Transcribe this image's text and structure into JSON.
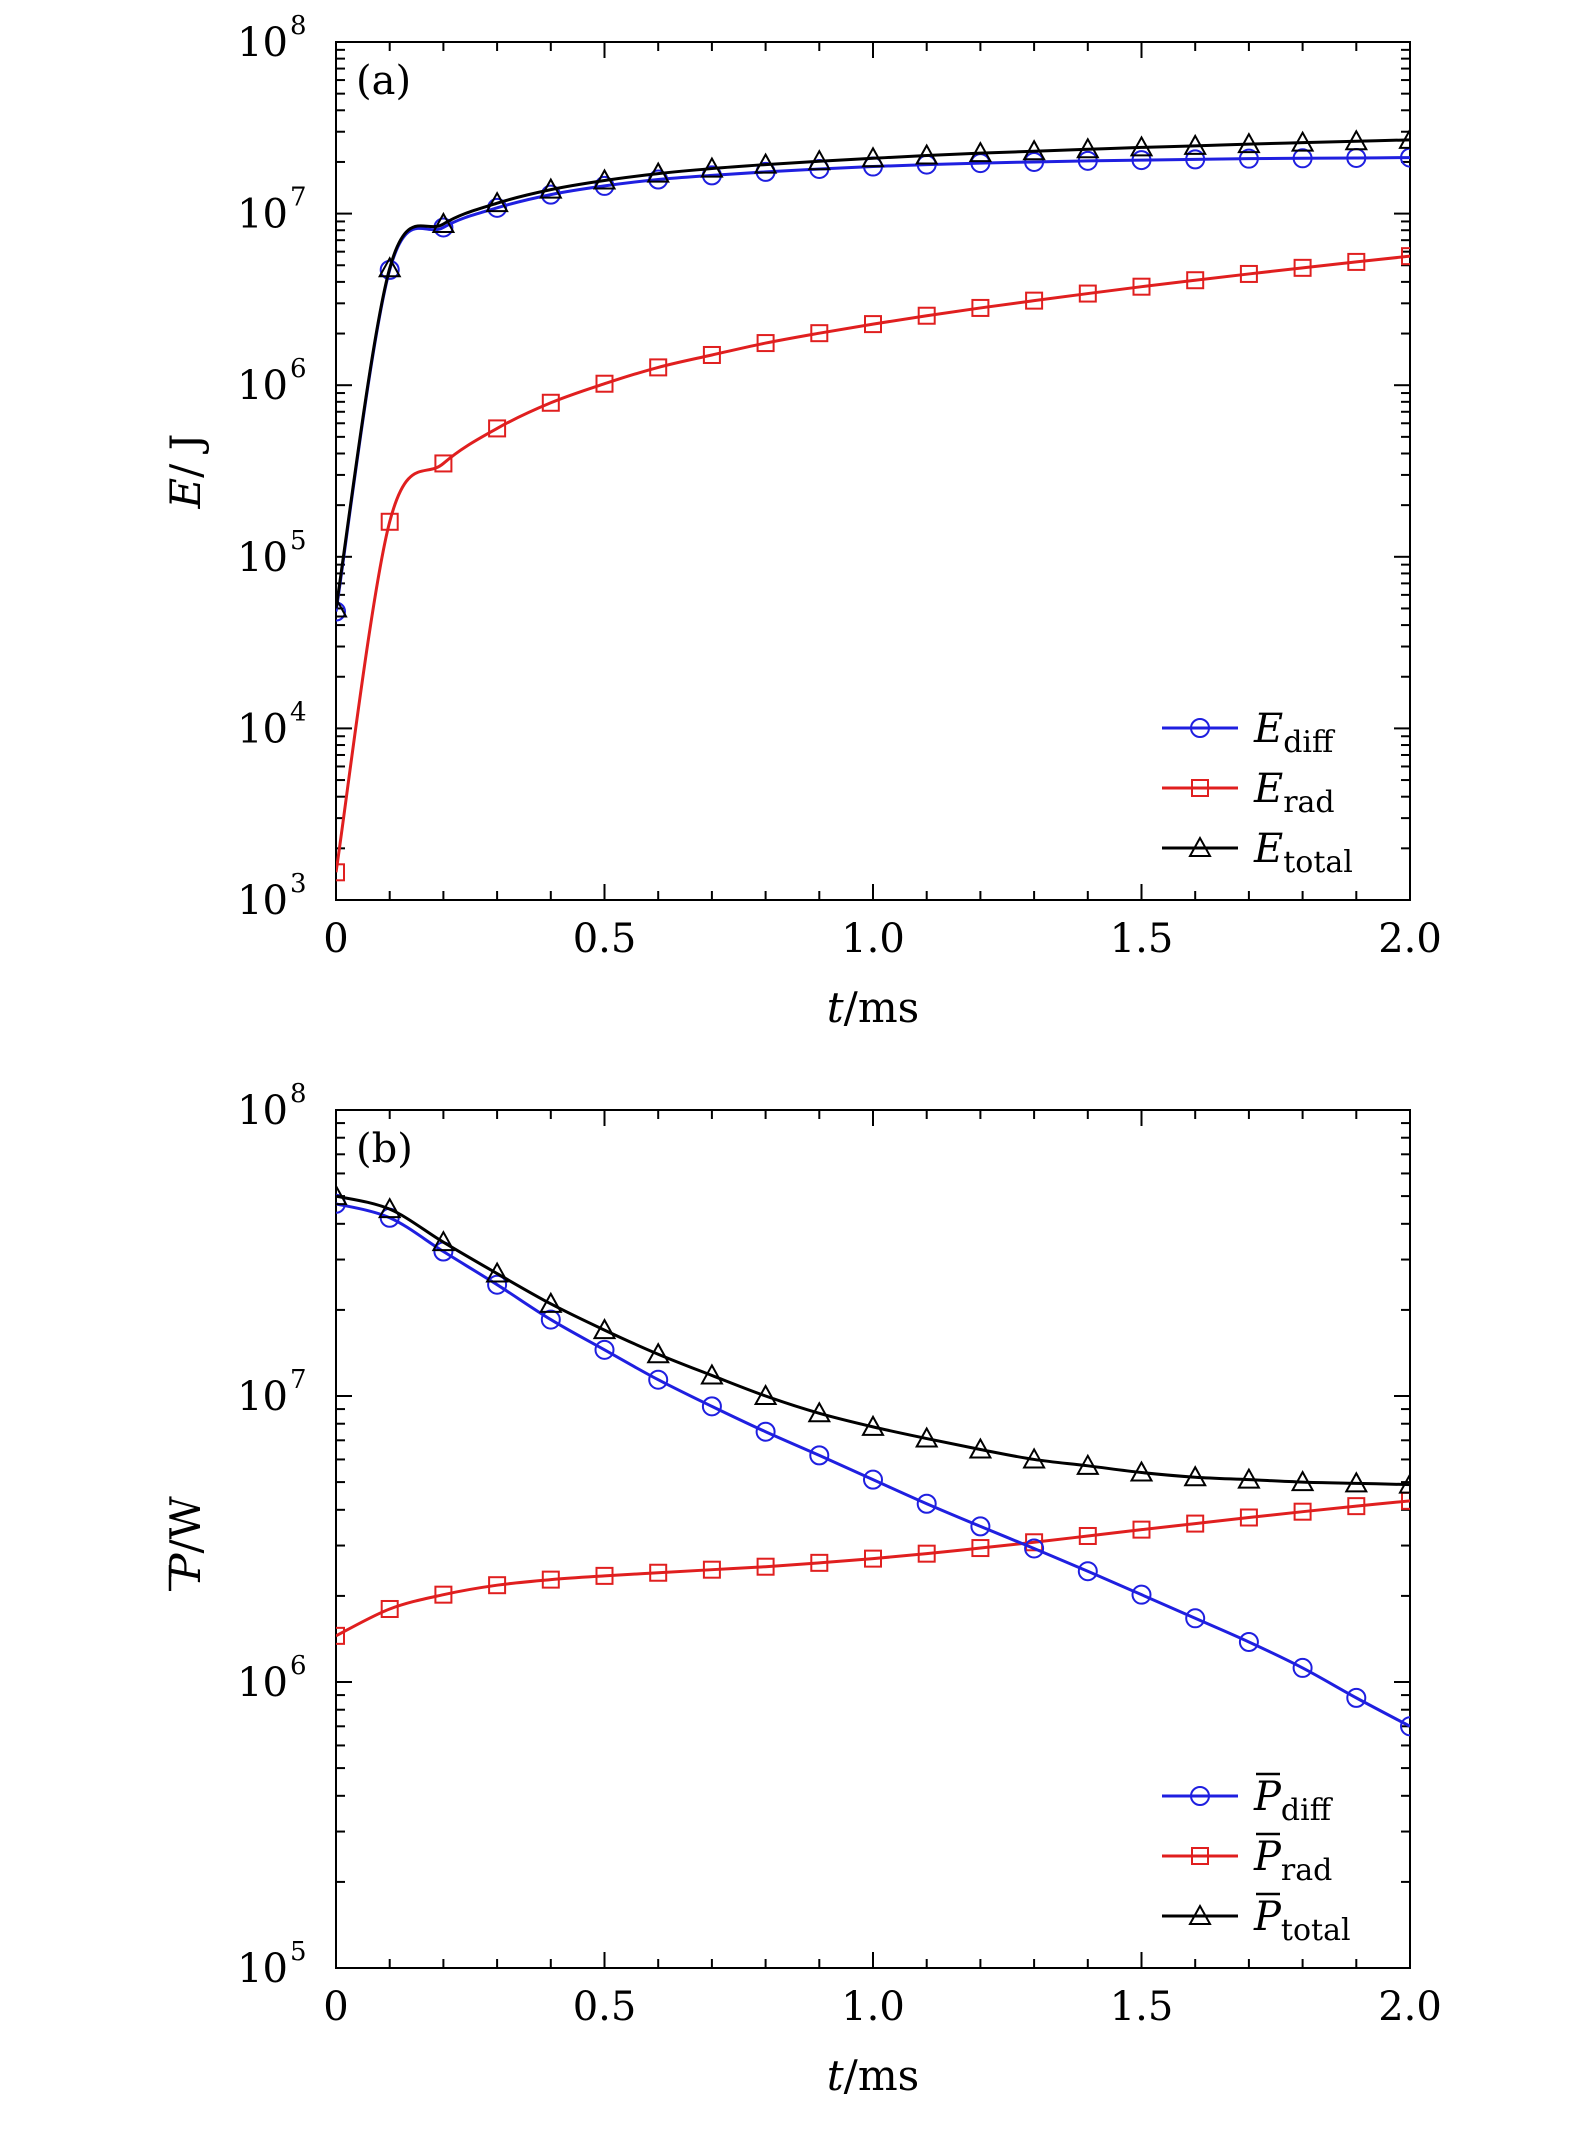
{
  "chart_data": [
    {
      "type": "line",
      "panel_label": "(a)",
      "xlabel_var": "t",
      "xlabel_unit": "/ms",
      "ylabel_var": "E",
      "ylabel_unit": "/ J",
      "xlim": [
        0,
        2.0
      ],
      "ylim": [
        1000,
        100000000
      ],
      "yscale": "log",
      "x_ticks": [
        0,
        0.5,
        1.0,
        1.5,
        2.0
      ],
      "x_tick_labels": [
        "0",
        "0.5",
        "1.0",
        "1.5",
        "2.0"
      ],
      "y_tick_labels": [
        {
          "base": "10",
          "exp": "3"
        },
        {
          "base": "10",
          "exp": "4"
        },
        {
          "base": "10",
          "exp": "5"
        },
        {
          "base": "10",
          "exp": "6"
        },
        {
          "base": "10",
          "exp": "7"
        },
        {
          "base": "10",
          "exp": "8"
        }
      ],
      "legend_position": "lower-right",
      "series": [
        {
          "name": "E",
          "subscript": "diff",
          "color": "#1f1fe0",
          "marker": "circle",
          "x": [
            0,
            0.1,
            0.2,
            0.3,
            0.4,
            0.5,
            0.6,
            0.7,
            0.8,
            0.9,
            1.0,
            1.1,
            1.2,
            1.3,
            1.4,
            1.5,
            1.6,
            1.7,
            1.8,
            1.9,
            2.0
          ],
          "y": [
            48000,
            4700000,
            8300000,
            10800000,
            12900000,
            14500000,
            15800000,
            16700000,
            17500000,
            18200000,
            18800000,
            19300000,
            19700000,
            20000000,
            20300000,
            20500000,
            20700000,
            20900000,
            21000000,
            21100000,
            21200000
          ]
        },
        {
          "name": "E",
          "subscript": "rad",
          "color": "#e01f1f",
          "marker": "square",
          "x": [
            0,
            0.1,
            0.2,
            0.3,
            0.4,
            0.5,
            0.6,
            0.7,
            0.8,
            0.9,
            1.0,
            1.1,
            1.2,
            1.3,
            1.4,
            1.5,
            1.6,
            1.7,
            1.8,
            1.9,
            2.0
          ],
          "y": [
            1450,
            160000,
            350000,
            560000,
            790000,
            1020000,
            1270000,
            1500000,
            1760000,
            2010000,
            2270000,
            2540000,
            2820000,
            3110000,
            3420000,
            3750000,
            4090000,
            4450000,
            4830000,
            5230000,
            5650000
          ]
        },
        {
          "name": "E",
          "subscript": "total",
          "color": "#000000",
          "marker": "triangle",
          "x": [
            0,
            0.1,
            0.2,
            0.3,
            0.4,
            0.5,
            0.6,
            0.7,
            0.8,
            0.9,
            1.0,
            1.1,
            1.2,
            1.3,
            1.4,
            1.5,
            1.6,
            1.7,
            1.8,
            1.9,
            2.0
          ],
          "y": [
            50000,
            4800000,
            8700000,
            11500000,
            13800000,
            15600000,
            17100000,
            18300000,
            19300000,
            20200000,
            21000000,
            21800000,
            22500000,
            23100000,
            23700000,
            24300000,
            24800000,
            25400000,
            25900000,
            26400000,
            26900000
          ]
        }
      ]
    },
    {
      "type": "line",
      "panel_label": "(b)",
      "xlabel_var": "t",
      "xlabel_unit": "/ms",
      "ylabel_var": "P",
      "ylabel_unit": "/W",
      "xlim": [
        0,
        2.0
      ],
      "ylim": [
        100000,
        100000000
      ],
      "yscale": "log",
      "x_ticks": [
        0,
        0.5,
        1.0,
        1.5,
        2.0
      ],
      "x_tick_labels": [
        "0",
        "0.5",
        "1.0",
        "1.5",
        "2.0"
      ],
      "y_tick_labels": [
        {
          "base": "10",
          "exp": "5"
        },
        {
          "base": "10",
          "exp": "6"
        },
        {
          "base": "10",
          "exp": "7"
        },
        {
          "base": "10",
          "exp": "8"
        }
      ],
      "legend_position": "lower-right",
      "series": [
        {
          "name": "P",
          "subscript": "diff",
          "color": "#1f1fe0",
          "marker": "circle",
          "x": [
            0,
            0.1,
            0.2,
            0.3,
            0.4,
            0.5,
            0.6,
            0.7,
            0.8,
            0.9,
            1.0,
            1.1,
            1.2,
            1.3,
            1.4,
            1.5,
            1.6,
            1.7,
            1.8,
            1.9,
            2.0
          ],
          "y": [
            47000000,
            42000000,
            32000000,
            24500000,
            18500000,
            14500000,
            11400000,
            9200000,
            7500000,
            6200000,
            5100000,
            4200000,
            3500000,
            2930000,
            2440000,
            2020000,
            1670000,
            1380000,
            1120000,
            880000,
            700000
          ]
        },
        {
          "name": "P",
          "subscript": "rad",
          "color": "#e01f1f",
          "marker": "square",
          "x": [
            0,
            0.1,
            0.2,
            0.3,
            0.4,
            0.5,
            0.6,
            0.7,
            0.8,
            0.9,
            1.0,
            1.1,
            1.2,
            1.3,
            1.4,
            1.5,
            1.6,
            1.7,
            1.8,
            1.9,
            2.0
          ],
          "y": [
            1450000,
            1800000,
            2020000,
            2180000,
            2280000,
            2350000,
            2410000,
            2470000,
            2530000,
            2610000,
            2700000,
            2810000,
            2940000,
            3080000,
            3240000,
            3410000,
            3580000,
            3760000,
            3940000,
            4120000,
            4300000
          ]
        },
        {
          "name": "P",
          "subscript": "total",
          "color": "#000000",
          "marker": "triangle",
          "x": [
            0,
            0.1,
            0.2,
            0.3,
            0.4,
            0.5,
            0.6,
            0.7,
            0.8,
            0.9,
            1.0,
            1.1,
            1.2,
            1.3,
            1.4,
            1.5,
            1.6,
            1.7,
            1.8,
            1.9,
            2.0
          ],
          "y": [
            50000000,
            45000000,
            34500000,
            26800000,
            21000000,
            17000000,
            14000000,
            11800000,
            10000000,
            8700000,
            7800000,
            7100000,
            6500000,
            6000000,
            5700000,
            5400000,
            5200000,
            5100000,
            5000000,
            4950000,
            4900000
          ]
        }
      ]
    }
  ]
}
